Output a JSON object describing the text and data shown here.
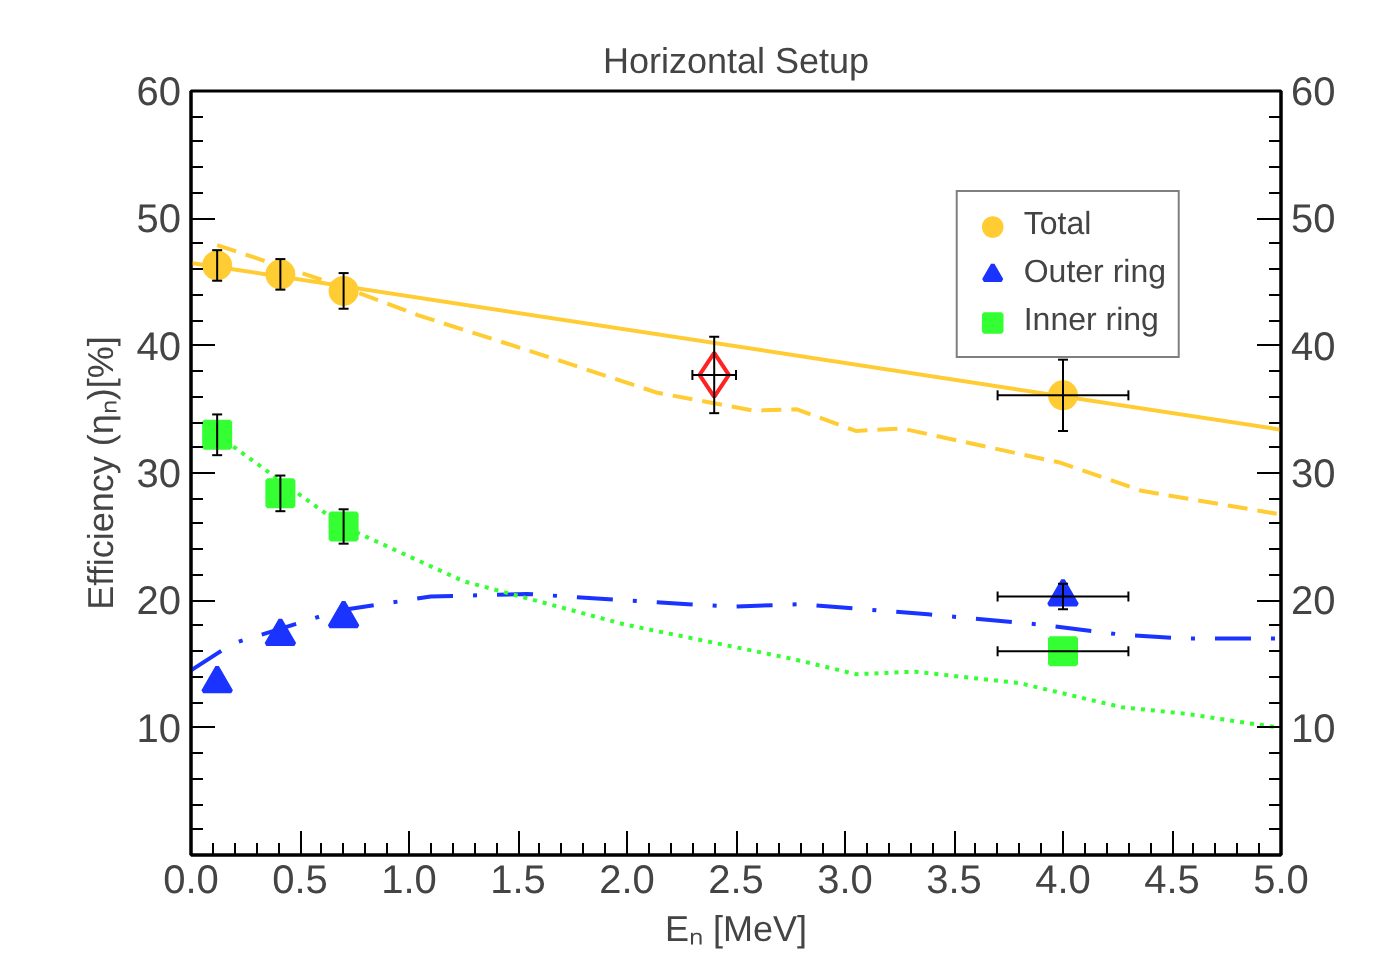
{
  "chart_data": {
    "type": "scatter",
    "title": "Horizontal Setup",
    "xlabel": "Eₙ [MeV]",
    "ylabel": "Efficiency (ηₙ)[%]",
    "xlim": [
      0,
      5
    ],
    "xticks": [
      {
        "value": 0,
        "label": "0.0"
      },
      {
        "value": 0.5,
        "label": "0.5"
      },
      {
        "value": 1,
        "label": "1.0"
      },
      {
        "value": 1.5,
        "label": "1.5"
      },
      {
        "value": 2,
        "label": "2.0"
      },
      {
        "value": 2.5,
        "label": "2.5"
      },
      {
        "value": 3,
        "label": "3.0"
      },
      {
        "value": 3.5,
        "label": "3.5"
      },
      {
        "value": 4,
        "label": "4.0"
      },
      {
        "value": 4.5,
        "label": "4.5"
      },
      {
        "value": 5,
        "label": "5.0"
      }
    ],
    "ylim": [
      0,
      60
    ],
    "yticks": [
      10,
      20,
      30,
      40,
      50,
      60
    ],
    "y2lim": [
      0,
      60
    ],
    "y2ticks": [
      10,
      20,
      30,
      40,
      50,
      60
    ],
    "grid": false,
    "legend": "top right",
    "series": [
      {
        "type": "line",
        "line_style": "solid",
        "color": "#ffcc33",
        "x": [
          0,
          5
        ],
        "values": [
          46.5,
          33.4
        ]
      },
      {
        "type": "line",
        "line_style": "dashed",
        "color": "#ffcc33",
        "x": [
          0.12,
          0.7,
          1.04,
          1.57,
          2.14,
          2.58,
          2.78,
          3.05,
          3.26,
          3.99,
          4.36,
          4.98
        ],
        "values": [
          47.9,
          44.6,
          42.4,
          39.5,
          36.3,
          34.9,
          35.0,
          33.3,
          33.5,
          30.8,
          28.6,
          26.8
        ]
      },
      {
        "type": "line",
        "line_style": "dashdot",
        "color": "#1a33ff",
        "x": [
          0,
          0.19,
          0.68,
          1.1,
          1.54,
          2.28,
          2.49,
          2.79,
          3.38,
          3.89,
          4.27,
          4.56,
          4.98
        ],
        "values": [
          14.5,
          16.6,
          19.2,
          20.3,
          20.5,
          19.7,
          19.5,
          19.7,
          18.9,
          18.1,
          17.3,
          17.0,
          17.0
        ]
      },
      {
        "type": "line",
        "line_style": "dotted",
        "color": "#33ff33",
        "x": [
          0.12,
          0.7,
          1.25,
          1.99,
          2.76,
          3.05,
          3.32,
          3.8,
          4.27,
          4.56,
          4.87,
          5.0
        ],
        "values": [
          33.0,
          25.8,
          21.5,
          18.1,
          15.4,
          14.2,
          14.4,
          13.5,
          11.6,
          11.1,
          10.3,
          10.0
        ]
      },
      {
        "name": "Total",
        "marker": "circle",
        "color": "#ffcc33",
        "x": [
          0.12,
          0.41,
          0.7,
          4.0
        ],
        "values": [
          46.3,
          45.6,
          44.3,
          36.1
        ],
        "errors": [
          1.2,
          1.2,
          1.4,
          2.8
        ],
        "xerrors": [
          null,
          null,
          null,
          0.3
        ]
      },
      {
        "name": "Outer ring",
        "marker": "triangle",
        "color": "#1a33ff",
        "x": [
          0.12,
          0.41,
          0.7,
          4.0
        ],
        "values": [
          13.5,
          17.2,
          18.6,
          20.3
        ],
        "errors": [
          null,
          null,
          null,
          1.0
        ],
        "xerrors": [
          null,
          null,
          null,
          0.3
        ]
      },
      {
        "name": "Inner ring",
        "marker": "square",
        "color": "#33ff33",
        "x": [
          0.12,
          0.41,
          0.7,
          4.0
        ],
        "values": [
          33.0,
          28.4,
          25.8,
          16.0
        ],
        "errors": [
          1.6,
          1.4,
          1.35,
          null
        ],
        "xerrors": [
          null,
          null,
          null,
          0.3
        ]
      },
      {
        "marker": "diamond",
        "color": "#ff2222",
        "x": [
          2.4
        ],
        "values": [
          37.7
        ],
        "errors": [
          3.0
        ],
        "xerrors": [
          0.1
        ]
      }
    ]
  }
}
